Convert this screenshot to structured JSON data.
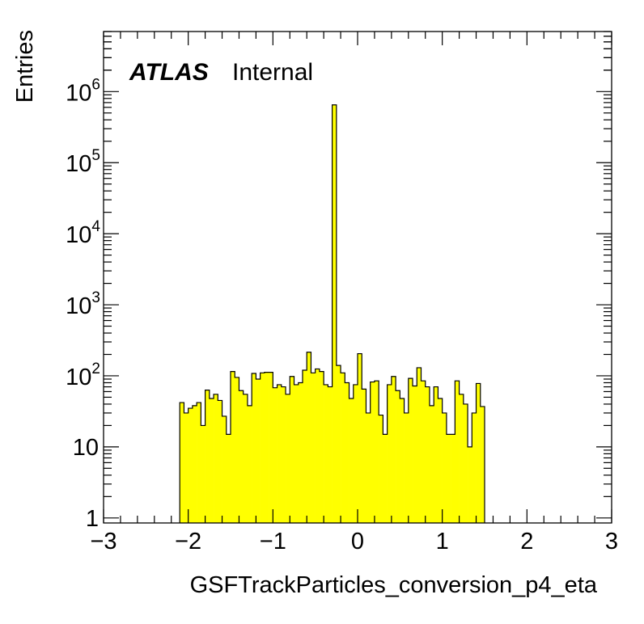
{
  "chart_data": {
    "type": "bar",
    "style": "histogram-step-filled",
    "fill_color": "#ffff00",
    "line_color": "#000000",
    "xlabel": "GSFTrackParticles_conversion_p4_eta",
    "ylabel": "Entries",
    "label": {
      "experiment": "ATLAS",
      "status": "Internal"
    },
    "xlim": [
      -3,
      3
    ],
    "ylim": [
      0.85,
      7000000
    ],
    "yscale": "log",
    "x_ticks": [
      "−3",
      "−2",
      "−1",
      "0",
      "1",
      "2",
      "3"
    ],
    "y_ticks": [
      {
        "base": "1",
        "exp": ""
      },
      {
        "base": "10",
        "exp": ""
      },
      {
        "base": "10",
        "exp": "2"
      },
      {
        "base": "10",
        "exp": "3"
      },
      {
        "base": "10",
        "exp": "4"
      },
      {
        "base": "10",
        "exp": "5"
      },
      {
        "base": "10",
        "exp": "6"
      }
    ],
    "bin_width": 0.05,
    "bin_start": -2.1,
    "values": [
      42,
      30,
      35,
      38,
      42,
      20,
      63,
      48,
      55,
      45,
      27,
      15,
      115,
      95,
      62,
      55,
      38,
      108,
      90,
      110,
      112,
      112,
      68,
      75,
      70,
      55,
      98,
      75,
      80,
      120,
      215,
      110,
      125,
      115,
      75,
      70,
      650000,
      140,
      110,
      80,
      48,
      75,
      205,
      65,
      30,
      82,
      85,
      28,
      15,
      75,
      98,
      62,
      48,
      30,
      92,
      72,
      130,
      85,
      70,
      38,
      70,
      48,
      30,
      15,
      15,
      85,
      55,
      40,
      10,
      30,
      78,
      37
    ]
  }
}
